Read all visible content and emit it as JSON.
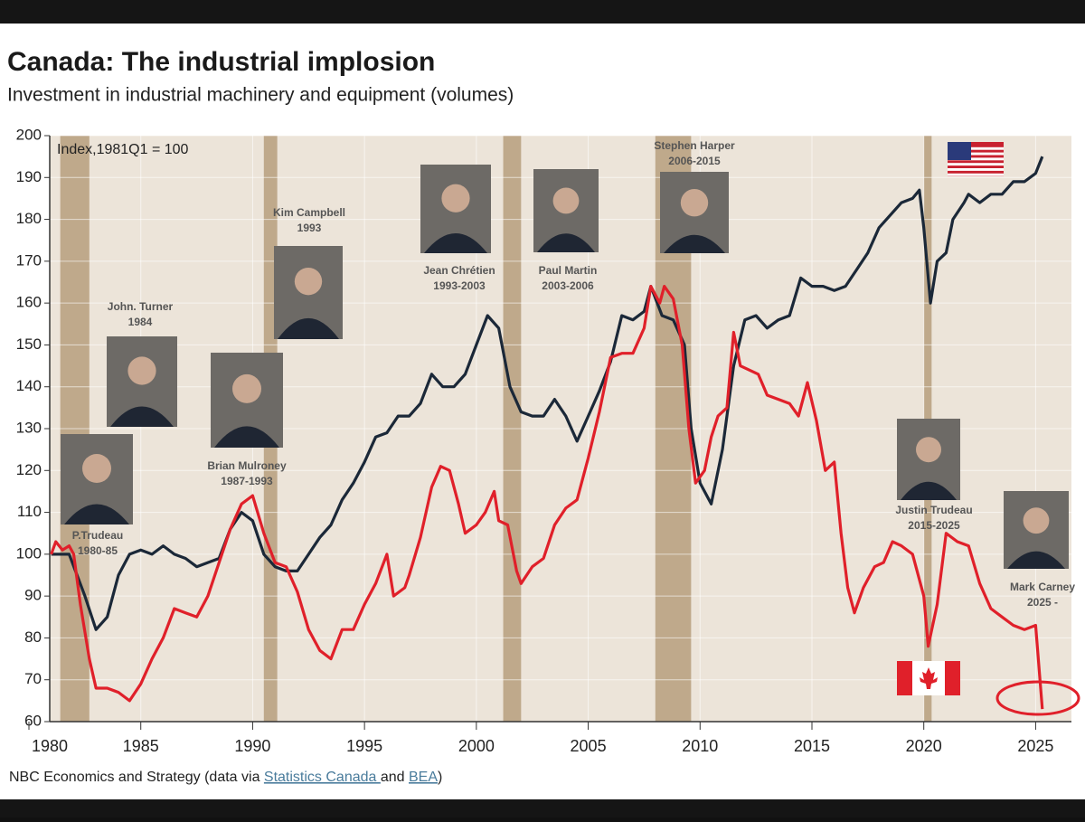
{
  "chart_data": {
    "type": "line",
    "title": "Canada: The industrial implosion",
    "subtitle": "Investment in industrial machinery and equipment (volumes)",
    "y_axis_note": "Index,1981Q1 = 100",
    "xlim": [
      1980,
      2026.6
    ],
    "xticks": [
      1980,
      1985,
      1990,
      1995,
      2000,
      2005,
      2010,
      2015,
      2020,
      2025
    ],
    "ylim": [
      60,
      200
    ],
    "yticks": [
      60,
      70,
      80,
      90,
      100,
      110,
      120,
      130,
      140,
      150,
      160,
      170,
      180,
      190,
      200
    ],
    "grid": true,
    "background_color": "#ece4d9",
    "recession_color": "#bfa98b",
    "recession_bands": [
      [
        1981.4,
        1982.7
      ],
      [
        1990.5,
        1991.1
      ],
      [
        2001.2,
        2002.0
      ],
      [
        2008.0,
        2009.6
      ],
      [
        2020.0,
        2020.35
      ]
    ],
    "series": [
      {
        "color": "#1b2838",
        "x": [
          1981.0,
          1981.8,
          1982.5,
          1983.0,
          1983.5,
          1984.0,
          1984.5,
          1985.0,
          1985.5,
          1986.0,
          1986.5,
          1987.0,
          1987.5,
          1988.0,
          1988.5,
          1989.0,
          1989.5,
          1990.0,
          1990.5,
          1991.0,
          1991.5,
          1992.0,
          1992.5,
          1993.0,
          1993.5,
          1994.0,
          1994.5,
          1995.0,
          1995.5,
          1996.0,
          1996.5,
          1997.0,
          1997.5,
          1998.0,
          1998.5,
          1999.0,
          1999.5,
          2000.0,
          2000.5,
          2001.0,
          2001.5,
          2002.0,
          2002.5,
          2003.0,
          2003.5,
          2004.0,
          2004.5,
          2005.0,
          2005.5,
          2006.0,
          2006.5,
          2007.0,
          2007.5,
          2007.8,
          2008.3,
          2008.8,
          2009.3,
          2009.6,
          2010.0,
          2010.5,
          2011.0,
          2011.5,
          2012.0,
          2012.5,
          2013.0,
          2013.5,
          2014.0,
          2014.5,
          2015.0,
          2015.5,
          2016.0,
          2016.5,
          2017.0,
          2017.5,
          2018.0,
          2018.5,
          2019.0,
          2019.5,
          2019.8,
          2020.0,
          2020.3,
          2020.6,
          2021.0,
          2021.3,
          2021.8,
          2022.0,
          2022.5,
          2023.0,
          2023.5,
          2024.0,
          2024.5,
          2025.0,
          2025.3
        ],
        "values": [
          100,
          100,
          90,
          82,
          85,
          95,
          100,
          101,
          100,
          102,
          100,
          99,
          97,
          98,
          99,
          106,
          110,
          108,
          100,
          97,
          96,
          96,
          100,
          104,
          107,
          113,
          117,
          122,
          128,
          129,
          133,
          133,
          136,
          143,
          140,
          140,
          143,
          150,
          157,
          154,
          140,
          134,
          133,
          133,
          137,
          133,
          127,
          133,
          139,
          146,
          157,
          156,
          158,
          164,
          157,
          156,
          150,
          130,
          117,
          112,
          125,
          145,
          156,
          157,
          154,
          156,
          157,
          166,
          164,
          164,
          163,
          164,
          168,
          172,
          178,
          181,
          184,
          185,
          187,
          178,
          160,
          170,
          172,
          180,
          184,
          186,
          184,
          186,
          186,
          189,
          189,
          191,
          195
        ]
      },
      {
        "color": "#e0202a",
        "x": [
          1981.0,
          1981.2,
          1981.5,
          1981.8,
          1982.0,
          1982.3,
          1982.7,
          1983.0,
          1983.5,
          1984.0,
          1984.5,
          1985.0,
          1985.5,
          1986.0,
          1986.5,
          1987.0,
          1987.5,
          1988.0,
          1988.5,
          1989.0,
          1989.5,
          1990.0,
          1990.5,
          1991.0,
          1991.5,
          1992.0,
          1992.5,
          1993.0,
          1993.5,
          1994.0,
          1994.5,
          1995.0,
          1995.5,
          1996.0,
          1996.3,
          1996.8,
          1997.0,
          1997.5,
          1998.0,
          1998.4,
          1998.8,
          1999.2,
          1999.5,
          2000.0,
          2000.4,
          2000.8,
          2001.0,
          2001.4,
          2001.8,
          2002.0,
          2002.5,
          2003.0,
          2003.5,
          2004.0,
          2004.5,
          2005.0,
          2005.5,
          2006.0,
          2006.5,
          2007.0,
          2007.5,
          2007.8,
          2008.2,
          2008.4,
          2008.8,
          2009.2,
          2009.5,
          2009.8,
          2010.2,
          2010.5,
          2010.8,
          2011.2,
          2011.5,
          2011.8,
          2012.2,
          2012.6,
          2013.0,
          2013.5,
          2014.0,
          2014.4,
          2014.8,
          2015.2,
          2015.6,
          2016.0,
          2016.3,
          2016.6,
          2016.9,
          2017.3,
          2017.8,
          2018.2,
          2018.6,
          2019.0,
          2019.5,
          2020.0,
          2020.2,
          2020.6,
          2021.0,
          2021.5,
          2022.0,
          2022.5,
          2023.0,
          2023.5,
          2024.0,
          2024.5,
          2025.0,
          2025.3
        ],
        "values": [
          100,
          103,
          101,
          102,
          100,
          88,
          75,
          68,
          68,
          67,
          65,
          69,
          75,
          80,
          87,
          86,
          85,
          90,
          98,
          106,
          112,
          114,
          105,
          98,
          97,
          91,
          82,
          77,
          75,
          82,
          82,
          88,
          93,
          100,
          90,
          92,
          95,
          104,
          116,
          121,
          120,
          112,
          105,
          107,
          110,
          115,
          108,
          107,
          96,
          93,
          97,
          99,
          107,
          111,
          113,
          123,
          134,
          147,
          148,
          148,
          154,
          164,
          160,
          164,
          161,
          150,
          130,
          117,
          120,
          128,
          133,
          135,
          153,
          145,
          144,
          143,
          138,
          137,
          136,
          133,
          141,
          132,
          120,
          122,
          105,
          92,
          86,
          92,
          97,
          98,
          103,
          102,
          100,
          90,
          78,
          88,
          105,
          103,
          102,
          93,
          87,
          85,
          83,
          82,
          83,
          63
        ]
      }
    ],
    "leaders": [
      {
        "name": "P.Trudeau",
        "term": "1980-85"
      },
      {
        "name": "John. Turner",
        "term": "1984"
      },
      {
        "name": "Brian Mulroney",
        "term": "1987-1993"
      },
      {
        "name": "Kim Campbell",
        "term": "1993"
      },
      {
        "name": "Jean Chrétien",
        "term": "1993-2003"
      },
      {
        "name": "Paul Martin",
        "term": "2003-2006"
      },
      {
        "name": "Stephen Harper",
        "term": "2006-2015"
      },
      {
        "name": "Justin Trudeau",
        "term": "2015-2025"
      },
      {
        "name": "Mark Carney",
        "term": "2025 -"
      }
    ],
    "source": [
      "NBC Economics and Strategy (data via ",
      "Statistics Canada ",
      "and ",
      "BEA",
      ")"
    ]
  }
}
